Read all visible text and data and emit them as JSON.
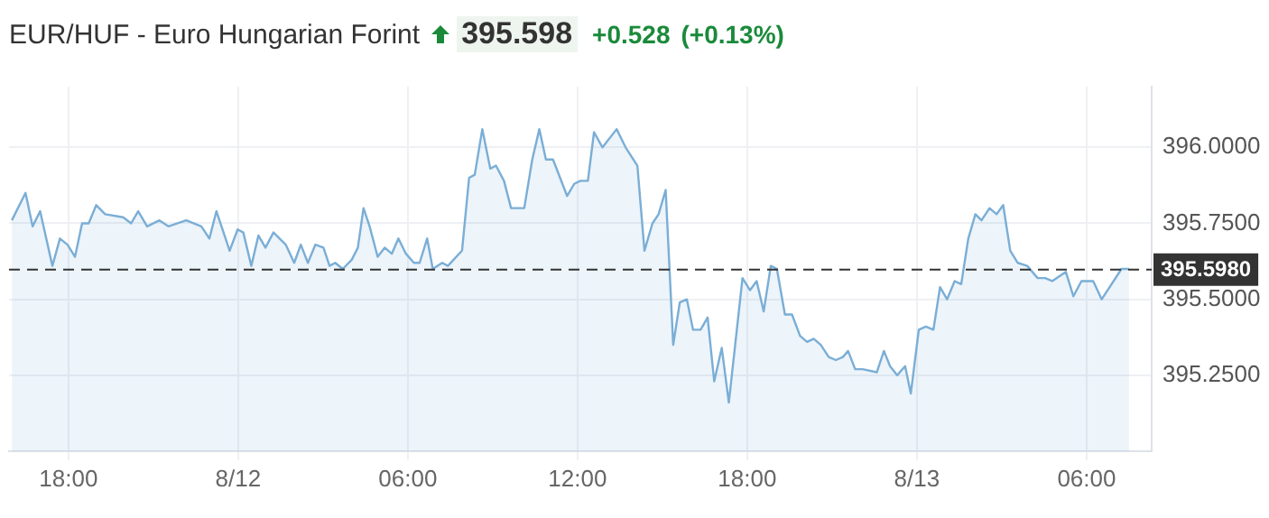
{
  "chart_data": {
    "type": "area",
    "title": "EUR/HUF - Euro Hungarian Forint",
    "annotations": [
      "395.598",
      "+0.528",
      "(+0.13%)"
    ],
    "series": [
      {
        "color": "#7aaed6",
        "x": [
          "--08-11T16:00",
          "--08-11T16:29",
          "--08-11T16:44",
          "--08-11T17:00",
          "--08-11T17:26",
          "--08-11T17:42",
          "--08-11T17:58",
          "--08-11T18:14",
          "--08-11T18:29",
          "--08-11T18:43",
          "--08-11T18:59",
          "--08-11T19:18",
          "--08-11T19:56",
          "--08-11T20:13",
          "--08-11T20:28",
          "--08-11T20:47",
          "--08-11T21:13",
          "--08-11T21:32",
          "--08-11T22:10",
          "--08-11T22:42",
          "--08-11T22:59",
          "--08-11T23:14",
          "--08-11T23:42",
          "--08-11T23:59",
          "--08-12T00:11",
          "--08-12T00:28",
          "--08-12T00:43",
          "--08-12T00:58",
          "--08-12T01:15",
          "--08-12T01:41",
          "--08-12T01:59",
          "--08-12T02:13",
          "--08-12T02:28",
          "--08-12T02:44",
          "--08-12T03:01",
          "--08-12T03:14",
          "--08-12T03:26",
          "--08-12T03:42",
          "--08-12T04:01",
          "--08-12T04:14",
          "--08-12T04:26",
          "--08-12T04:39",
          "--08-12T04:56",
          "--08-12T05:11",
          "--08-12T05:26",
          "--08-12T05:40",
          "--08-12T05:56",
          "--08-12T06:13",
          "--08-12T06:25",
          "--08-12T06:41",
          "--08-12T06:53",
          "--08-12T07:13",
          "--08-12T07:25",
          "--08-12T07:55",
          "--08-12T08:10",
          "--08-12T08:22",
          "--08-12T08:38",
          "--08-12T08:55",
          "--08-12T09:07",
          "--08-12T09:24",
          "--08-12T09:39",
          "--08-12T10:07",
          "--08-12T10:24",
          "--08-12T10:39",
          "--08-12T10:53",
          "--08-12T11:08",
          "--08-12T11:38",
          "--08-12T11:53",
          "--08-12T12:06",
          "--08-12T12:22",
          "--08-12T12:35",
          "--08-12T12:53",
          "--08-12T13:23",
          "--08-12T13:42",
          "--08-12T14:07",
          "--08-12T14:22",
          "--08-12T14:39",
          "--08-12T14:52",
          "--08-12T15:07",
          "--08-12T15:23",
          "--08-12T15:37",
          "--08-12T15:52",
          "--08-12T16:05",
          "--08-12T16:21",
          "--08-12T16:36",
          "--08-12T16:50",
          "--08-12T17:06",
          "--08-12T17:21",
          "--08-12T17:50",
          "--08-12T18:06",
          "--08-12T18:20",
          "--08-12T18:35",
          "--08-12T18:50",
          "--08-12T19:03",
          "--08-12T19:20",
          "--08-12T19:35",
          "--08-12T19:52",
          "--08-12T20:07",
          "--08-12T20:21",
          "--08-12T20:36",
          "--08-12T20:53",
          "--08-12T21:08",
          "--08-12T21:23",
          "--08-12T21:34",
          "--08-12T21:49",
          "--08-12T22:05",
          "--08-12T22:35",
          "--08-12T22:50",
          "--08-12T23:03",
          "--08-12T23:18",
          "--08-12T23:35",
          "--08-12T23:47",
          "--08-13T00:04",
          "--08-13T00:19",
          "--08-13T00:35",
          "--08-13T00:49",
          "--08-13T01:04",
          "--08-13T01:20",
          "--08-13T01:34",
          "--08-13T01:49",
          "--08-13T02:04",
          "--08-13T02:17",
          "--08-13T02:34",
          "--08-13T02:49",
          "--08-13T03:03",
          "--08-13T03:18",
          "--08-13T03:34",
          "--08-13T03:54",
          "--08-13T04:16",
          "--08-13T04:32",
          "--08-13T04:47",
          "--08-13T05:16",
          "--08-13T05:32",
          "--08-13T05:49",
          "--08-13T06:14",
          "--08-13T06:32",
          "--08-13T07:14",
          "--08-13T07:30"
        ],
        "values": [
          395.76,
          395.85,
          395.74,
          395.79,
          395.61,
          395.7,
          395.68,
          395.64,
          395.75,
          395.75,
          395.81,
          395.78,
          395.77,
          395.75,
          395.79,
          395.74,
          395.76,
          395.74,
          395.76,
          395.74,
          395.7,
          395.79,
          395.66,
          395.73,
          395.72,
          395.61,
          395.71,
          395.67,
          395.72,
          395.68,
          395.62,
          395.68,
          395.62,
          395.68,
          395.67,
          395.61,
          395.62,
          395.6,
          395.63,
          395.67,
          395.8,
          395.74,
          395.64,
          395.67,
          395.65,
          395.7,
          395.65,
          395.62,
          395.62,
          395.7,
          395.6,
          395.62,
          395.61,
          395.66,
          395.9,
          395.91,
          396.06,
          395.93,
          395.94,
          395.89,
          395.8,
          395.8,
          395.96,
          396.06,
          395.96,
          395.96,
          395.84,
          395.88,
          395.89,
          395.89,
          396.05,
          396.0,
          396.06,
          396.0,
          395.94,
          395.66,
          395.75,
          395.78,
          395.86,
          395.35,
          395.49,
          395.5,
          395.4,
          395.4,
          395.44,
          395.23,
          395.34,
          395.16,
          395.57,
          395.53,
          395.56,
          395.46,
          395.61,
          395.6,
          395.45,
          395.45,
          395.38,
          395.36,
          395.37,
          395.35,
          395.31,
          395.3,
          395.31,
          395.33,
          395.27,
          395.27,
          395.26,
          395.33,
          395.28,
          395.25,
          395.28,
          395.19,
          395.4,
          395.41,
          395.4,
          395.54,
          395.5,
          395.56,
          395.55,
          395.7,
          395.78,
          395.76,
          395.8,
          395.78,
          395.81,
          395.66,
          395.62,
          395.61,
          395.57,
          395.57,
          395.56,
          395.59,
          395.51,
          395.56,
          395.56,
          395.5,
          395.6,
          395.6
        ]
      }
    ],
    "xlim": [
      "--08-11T15:54",
      "--08-13T08:18"
    ],
    "xticks": [
      {
        "value": "--08-11T18:00",
        "label": "18:00"
      },
      {
        "value": "--08-12T00:00",
        "label": "8/12"
      },
      {
        "value": "--08-12T06:00",
        "label": "06:00"
      },
      {
        "value": "--08-12T12:00",
        "label": "12:00"
      },
      {
        "value": "--08-12T18:00",
        "label": "18:00"
      },
      {
        "value": "--08-13T00:00",
        "label": "8/13"
      },
      {
        "value": "--08-13T06:00",
        "label": "06:00"
      }
    ],
    "ylim": [
      395.0,
      396.2
    ],
    "yticks": [
      {
        "value": 395.25,
        "label": "395.2500"
      },
      {
        "value": 395.5,
        "label": "395.5000"
      },
      {
        "value": 395.75,
        "label": "395.7500"
      },
      {
        "value": 396,
        "label": "396.0000"
      }
    ],
    "ref_lines": [
      {
        "axis": "y",
        "value": 395.598,
        "label": "395.5980",
        "color": "#333333",
        "line_style": "dashed"
      }
    ],
    "grid": true,
    "legend": false
  }
}
